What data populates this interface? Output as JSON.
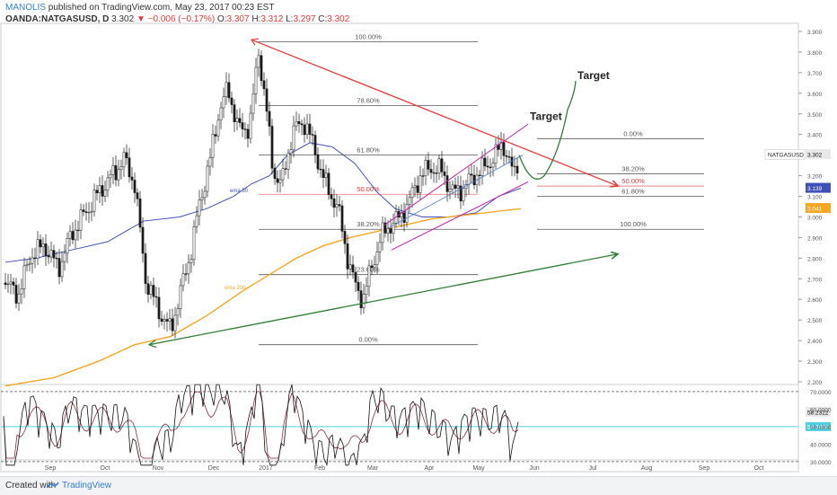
{
  "header": {
    "author": "MANOLIS",
    "published": "published on TradingView.com, May 23, 2017 00:23 EST",
    "symbol": "OANDA:NATGASUSD, D",
    "price": "3.302",
    "change": "−0.006 (−0.17%)",
    "open_label": "O:",
    "open": "3.307",
    "high_label": "H:",
    "high": "3.312",
    "low_label": "L:",
    "low": "3.297",
    "close_label": "C:",
    "close": "3.302"
  },
  "footer": {
    "created": "Created with",
    "brand": "TradingView"
  },
  "colors": {
    "red": "#e53935",
    "green": "#2e7d32",
    "purple": "#c21aa8",
    "ema50": "#3f51b5",
    "ema200": "#f5a623",
    "cyan": "#4dd0e1",
    "fib": "#555555",
    "candle": "#1a1a1a"
  },
  "chart_data": {
    "type": "candlestick",
    "symbol_label": "NATGASUSD",
    "price_axis": {
      "min": 2.2,
      "max": 3.9,
      "ticks": [
        "3.900",
        "3.800",
        "3.700",
        "3.600",
        "3.500",
        "3.400",
        "3.300",
        "3.200",
        "3.100",
        "3.000",
        "2.900",
        "2.800",
        "2.700",
        "2.600",
        "2.500",
        "2.400",
        "2.300",
        "2.200"
      ]
    },
    "time_axis": [
      "Sep",
      "Oct",
      "Nov",
      "Dec",
      "2017",
      "Feb",
      "Mar",
      "Apr",
      "May",
      "Jun",
      "Jul",
      "Aug",
      "Sep",
      "Oct"
    ],
    "price_labels": [
      {
        "text": "3.302",
        "value": 3.302,
        "color": "#1a1a1a"
      },
      {
        "text": "3.139",
        "value": 3.139,
        "color": "#3f51b5"
      },
      {
        "text": "3.041",
        "value": 3.041,
        "color": "#f5a623"
      }
    ],
    "ema_labels": [
      {
        "text": "ema 50",
        "color": "#3f51b5"
      },
      {
        "text": "ema 200",
        "color": "#f5a623"
      }
    ],
    "fib_left": [
      {
        "label": "100.00%",
        "value": 3.85
      },
      {
        "label": "78.60%",
        "value": 3.54
      },
      {
        "label": "61.80%",
        "value": 3.3
      },
      {
        "label": "50.00%",
        "value": 3.11
      },
      {
        "label": "38.20%",
        "value": 2.94
      },
      {
        "label": "23.60%",
        "value": 2.72
      },
      {
        "label": "0.00%",
        "value": 2.38
      }
    ],
    "fib_right": [
      {
        "label": "0.00%",
        "value": 3.38
      },
      {
        "label": "38.20%",
        "value": 3.21
      },
      {
        "label": "50.00%",
        "value": 3.15
      },
      {
        "label": "61.80%",
        "value": 3.1
      },
      {
        "label": "100.00%",
        "value": 2.94
      }
    ],
    "annotations": [
      {
        "text": "Target"
      },
      {
        "text": "Target"
      }
    ],
    "oscillator": {
      "ticks": [
        "70.0000",
        "60.0000",
        "50.0000",
        "40.0000",
        "30.0000"
      ],
      "current_label": "58.2322",
      "level_label": "50.0000",
      "upper": 70,
      "mid": 50,
      "lower": 30
    }
  }
}
